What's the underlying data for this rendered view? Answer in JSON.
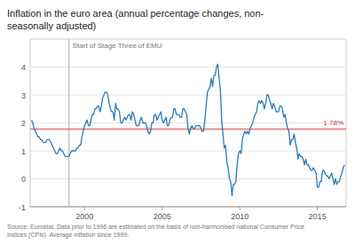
{
  "chart_data": {
    "type": "line",
    "title": "Inflation in the euro area (annual percentage changes, non-\nseasonally adjusted)",
    "source": "Source: Eurostat. Data prior to 1996 are estimated on the basis of non-harmonised national Consumer Price\nIndices (CPIs). Average inflation since 1999.",
    "color": "#2b7bba",
    "xlim": [
      1996.5,
      2016.85
    ],
    "xticks": [
      2000,
      2005,
      2010,
      2015
    ],
    "ylim": [
      -1,
      5
    ],
    "yticks": [
      -1,
      0,
      1,
      2,
      3,
      4
    ],
    "grid": true,
    "avg_line": {
      "value": 1.78,
      "label": "1.78%",
      "color": "#cc3333"
    },
    "event_line": {
      "x": 1999.0,
      "label": "Start of Stage Three of EMU"
    },
    "x": [
      1996.583,
      1996.667,
      1996.75,
      1996.833,
      1996.917,
      1997.0,
      1997.083,
      1997.167,
      1997.25,
      1997.333,
      1997.417,
      1997.5,
      1997.583,
      1997.667,
      1997.75,
      1997.833,
      1997.917,
      1998.0,
      1998.083,
      1998.167,
      1998.25,
      1998.333,
      1998.417,
      1998.5,
      1998.583,
      1998.667,
      1998.75,
      1998.833,
      1998.917,
      1999.0,
      1999.083,
      1999.167,
      1999.25,
      1999.333,
      1999.417,
      1999.5,
      1999.583,
      1999.667,
      1999.75,
      1999.833,
      1999.917,
      2000.0,
      2000.083,
      2000.167,
      2000.25,
      2000.333,
      2000.417,
      2000.5,
      2000.583,
      2000.667,
      2000.75,
      2000.833,
      2000.917,
      2001.0,
      2001.083,
      2001.167,
      2001.25,
      2001.333,
      2001.417,
      2001.5,
      2001.583,
      2001.667,
      2001.75,
      2001.833,
      2001.917,
      2002.0,
      2002.083,
      2002.167,
      2002.25,
      2002.333,
      2002.417,
      2002.5,
      2002.583,
      2002.667,
      2002.75,
      2002.833,
      2002.917,
      2003.0,
      2003.083,
      2003.167,
      2003.25,
      2003.333,
      2003.417,
      2003.5,
      2003.583,
      2003.667,
      2003.75,
      2003.833,
      2003.917,
      2004.0,
      2004.083,
      2004.167,
      2004.25,
      2004.333,
      2004.417,
      2004.5,
      2004.583,
      2004.667,
      2004.75,
      2004.833,
      2004.917,
      2005.0,
      2005.083,
      2005.167,
      2005.25,
      2005.333,
      2005.417,
      2005.5,
      2005.583,
      2005.667,
      2005.75,
      2005.833,
      2005.917,
      2006.0,
      2006.083,
      2006.167,
      2006.25,
      2006.333,
      2006.417,
      2006.5,
      2006.583,
      2006.667,
      2006.75,
      2006.833,
      2006.917,
      2007.0,
      2007.083,
      2007.167,
      2007.25,
      2007.333,
      2007.417,
      2007.5,
      2007.583,
      2007.667,
      2007.75,
      2007.833,
      2007.917,
      2008.0,
      2008.083,
      2008.167,
      2008.25,
      2008.333,
      2008.417,
      2008.5,
      2008.583,
      2008.667,
      2008.75,
      2008.833,
      2008.917,
      2009.0,
      2009.083,
      2009.167,
      2009.25,
      2009.333,
      2009.417,
      2009.5,
      2009.583,
      2009.667,
      2009.75,
      2009.833,
      2009.917,
      2010.0,
      2010.083,
      2010.167,
      2010.25,
      2010.333,
      2010.417,
      2010.5,
      2010.583,
      2010.667,
      2010.75,
      2010.833,
      2010.917,
      2011.0,
      2011.083,
      2011.167,
      2011.25,
      2011.333,
      2011.417,
      2011.5,
      2011.583,
      2011.667,
      2011.75,
      2011.833,
      2011.917,
      2012.0,
      2012.083,
      2012.167,
      2012.25,
      2012.333,
      2012.417,
      2012.5,
      2012.583,
      2012.667,
      2012.75,
      2012.833,
      2012.917,
      2013.0,
      2013.083,
      2013.167,
      2013.25,
      2013.333,
      2013.417,
      2013.5,
      2013.583,
      2013.667,
      2013.75,
      2013.833,
      2013.917,
      2014.0,
      2014.083,
      2014.167,
      2014.25,
      2014.333,
      2014.417,
      2014.5,
      2014.583,
      2014.667,
      2014.75,
      2014.833,
      2014.917,
      2015.0,
      2015.083,
      2015.167,
      2015.25,
      2015.333,
      2015.417,
      2015.5,
      2015.583,
      2015.667,
      2015.75,
      2015.833,
      2015.917,
      2016.0,
      2016.083,
      2016.167,
      2016.25,
      2016.333,
      2016.417,
      2016.5,
      2016.583,
      2016.667,
      2016.75
    ],
    "values": [
      2.1,
      2.0,
      1.8,
      1.7,
      1.6,
      1.5,
      1.5,
      1.4,
      1.4,
      1.3,
      1.3,
      1.3,
      1.4,
      1.4,
      1.4,
      1.3,
      1.2,
      1.1,
      1.0,
      0.9,
      0.9,
      1.0,
      1.1,
      1.0,
      1.0,
      0.9,
      0.8,
      0.8,
      0.8,
      0.8,
      0.9,
      1.0,
      1.0,
      1.0,
      1.0,
      1.1,
      1.1,
      1.2,
      1.2,
      1.5,
      1.7,
      1.9,
      2.0,
      2.1,
      1.9,
      1.9,
      2.1,
      2.3,
      2.3,
      2.5,
      2.5,
      2.6,
      2.6,
      2.4,
      2.6,
      2.9,
      3.0,
      3.1,
      3.1,
      3.0,
      2.7,
      2.5,
      2.4,
      2.4,
      2.1,
      2.7,
      2.5,
      2.5,
      2.4,
      2.0,
      2.0,
      2.1,
      2.2,
      2.1,
      2.2,
      2.3,
      2.3,
      2.1,
      2.4,
      2.3,
      2.1,
      1.9,
      1.9,
      1.9,
      2.1,
      2.2,
      2.0,
      2.0,
      2.0,
      1.9,
      1.7,
      1.6,
      1.7,
      2.0,
      2.0,
      2.3,
      2.3,
      2.1,
      2.2,
      2.3,
      2.4,
      2.1,
      2.0,
      2.1,
      2.2,
      1.9,
      1.9,
      2.1,
      2.2,
      2.2,
      2.5,
      2.5,
      2.3,
      2.3,
      2.3,
      2.2,
      2.2,
      2.5,
      2.5,
      2.4,
      2.3,
      1.8,
      1.6,
      1.8,
      1.9,
      1.8,
      1.8,
      1.9,
      1.9,
      1.9,
      1.9,
      1.8,
      1.7,
      1.7,
      2.1,
      2.6,
      3.1,
      3.2,
      3.3,
      3.6,
      3.3,
      3.7,
      3.7,
      4.0,
      4.1,
      3.6,
      3.2,
      2.1,
      1.6,
      1.1,
      1.2,
      0.6,
      0.4,
      0.0,
      -0.1,
      -0.6,
      -0.2,
      -0.2,
      -0.1,
      0.5,
      0.9,
      1.0,
      0.9,
      1.4,
      1.6,
      1.7,
      1.6,
      1.7,
      1.6,
      1.8,
      1.9,
      2.0,
      2.2,
      2.3,
      2.4,
      2.7,
      2.8,
      2.7,
      2.8,
      2.7,
      2.5,
      2.7,
      3.0,
      3.0,
      2.8,
      2.7,
      2.5,
      2.7,
      2.6,
      2.4,
      2.4,
      2.4,
      2.6,
      2.6,
      2.5,
      2.2,
      2.3,
      2.0,
      1.8,
      1.7,
      1.2,
      1.4,
      1.4,
      1.6,
      1.3,
      1.1,
      0.7,
      0.9,
      0.8,
      0.8,
      0.7,
      0.5,
      0.7,
      0.5,
      0.5,
      0.4,
      0.3,
      0.3,
      0.4,
      0.3,
      0.2,
      -0.3,
      -0.3,
      -0.1,
      -0.1,
      0.3,
      0.3,
      0.2,
      0.1,
      0.1,
      0.0,
      0.1,
      0.2,
      0.0,
      -0.2,
      0.0,
      -0.2,
      -0.1,
      -0.1,
      0.1,
      0.2,
      0.4,
      0.5
    ]
  }
}
